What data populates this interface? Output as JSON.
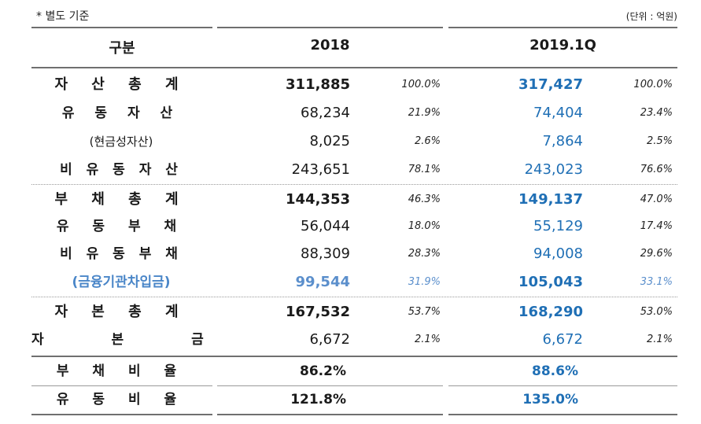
{
  "note": "* 별도 기준",
  "unit": "(단위 : 억원)",
  "headers": {
    "category": "구분",
    "col1": "2018",
    "col2": "2019.1Q"
  },
  "rows": [
    {
      "label": "자 산 총 계",
      "v2018": "311,885",
      "p2018": "100.0%",
      "v2019": "317,427",
      "p2019": "100.0%"
    },
    {
      "label": "유 동 자 산",
      "v2018": "68,234",
      "p2018": "21.9%",
      "v2019": "74,404",
      "p2019": "23.4%"
    },
    {
      "label": "(현금성자산)",
      "v2018": "8,025",
      "p2018": "2.6%",
      "v2019": "7,864",
      "p2019": "2.5%"
    },
    {
      "label": "비 유 동 자 산",
      "v2018": "243,651",
      "p2018": "78.1%",
      "v2019": "243,023",
      "p2019": "76.6%"
    },
    {
      "label": "부 채 총 계",
      "v2018": "144,353",
      "p2018": "46.3%",
      "v2019": "149,137",
      "p2019": "47.0%"
    },
    {
      "label": "유 동 부 채",
      "v2018": "56,044",
      "p2018": "18.0%",
      "v2019": "55,129",
      "p2019": "17.4%"
    },
    {
      "label": "비 유 동 부 채",
      "v2018": "88,309",
      "p2018": "28.3%",
      "v2019": "94,008",
      "p2019": "29.6%"
    },
    {
      "label": "(금융기관차입금)",
      "v2018": "99,544",
      "p2018": "31.9%",
      "v2019": "105,043",
      "p2019": "33.1%"
    },
    {
      "label": "자 본 총 계",
      "v2018": "167,532",
      "p2018": "53.7%",
      "v2019": "168,290",
      "p2019": "53.0%"
    },
    {
      "label": "자 본 금",
      "v2018": "6,672",
      "p2018": "2.1%",
      "v2019": "6,672",
      "p2019": "2.1%"
    }
  ],
  "ratios": [
    {
      "label": "부 채 비 율",
      "v2018": "86.2%",
      "v2019": "88.6%"
    },
    {
      "label": "유 동 비 율",
      "v2018": "121.8%",
      "v2019": "135.0%"
    }
  ],
  "colors": {
    "accent_blue": "#1f6fb5",
    "light_blue": "#5b8fcc",
    "rule": "#6f6f6f"
  }
}
